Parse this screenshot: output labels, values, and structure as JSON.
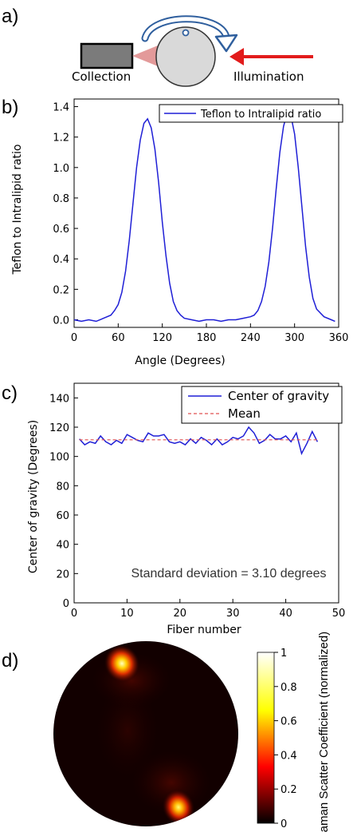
{
  "panel_labels": {
    "a": "a)",
    "b": "b)",
    "c": "c)",
    "d": "d)"
  },
  "diagram": {
    "collection_label": "Collection",
    "illumination_label": "Illumination",
    "arrow_color": "#e21b1b",
    "rotation_arrow_color": "#2f5f9e"
  },
  "chart_data": [
    {
      "type": "line",
      "panel": "b",
      "ylabel": "Teflon to Intralipid ratio",
      "xlabel": "Angle (Degrees)",
      "xlim": [
        0,
        360
      ],
      "ylim": [
        -0.05,
        1.45
      ],
      "xticks": [
        "0",
        "60",
        "120",
        "180",
        "240",
        "300",
        "360"
      ],
      "yticks": [
        "0.0",
        "0.2",
        "0.4",
        "0.6",
        "0.8",
        "1.0",
        "1.2",
        "1.4"
      ],
      "legend": "top-right",
      "series": [
        {
          "name": "Teflon to Intralipid ratio",
          "color": "#1f1fd6",
          "x": [
            0,
            10,
            20,
            30,
            40,
            50,
            55,
            60,
            65,
            70,
            75,
            80,
            85,
            90,
            95,
            100,
            105,
            110,
            115,
            120,
            125,
            130,
            135,
            140,
            145,
            150,
            160,
            170,
            180,
            190,
            200,
            210,
            220,
            230,
            240,
            245,
            250,
            255,
            260,
            265,
            270,
            275,
            280,
            285,
            290,
            295,
            300,
            305,
            310,
            315,
            320,
            325,
            330,
            340,
            350,
            355
          ],
          "y": [
            0.0,
            -0.01,
            0.0,
            -0.01,
            0.01,
            0.03,
            0.06,
            0.1,
            0.18,
            0.32,
            0.52,
            0.76,
            1.0,
            1.18,
            1.29,
            1.32,
            1.26,
            1.12,
            0.9,
            0.64,
            0.42,
            0.24,
            0.12,
            0.06,
            0.03,
            0.01,
            0.0,
            -0.01,
            0.0,
            0.0,
            -0.01,
            0.0,
            0.0,
            0.01,
            0.02,
            0.03,
            0.06,
            0.12,
            0.22,
            0.38,
            0.6,
            0.86,
            1.1,
            1.27,
            1.36,
            1.34,
            1.22,
            1.0,
            0.74,
            0.48,
            0.28,
            0.14,
            0.07,
            0.02,
            0.0,
            -0.01
          ]
        }
      ]
    },
    {
      "type": "line",
      "panel": "c",
      "ylabel": "Center of gravity (Degrees)",
      "xlabel": "Fiber number",
      "xlim": [
        0,
        50
      ],
      "ylim": [
        0,
        150
      ],
      "xticks": [
        "0",
        "10",
        "20",
        "30",
        "40",
        "50"
      ],
      "yticks": [
        "0",
        "20",
        "40",
        "60",
        "80",
        "100",
        "120",
        "140"
      ],
      "legend": "top-right",
      "annotation": "Standard deviation = 3.10 degrees",
      "series": [
        {
          "name": "Center of gravity",
          "color": "#1f1fd6",
          "x": [
            1,
            2,
            3,
            4,
            5,
            6,
            7,
            8,
            9,
            10,
            11,
            12,
            13,
            14,
            15,
            16,
            17,
            18,
            19,
            20,
            21,
            22,
            23,
            24,
            25,
            26,
            27,
            28,
            29,
            30,
            31,
            32,
            33,
            34,
            35,
            36,
            37,
            38,
            39,
            40,
            41,
            42,
            43,
            44,
            45,
            46
          ],
          "y": [
            112,
            108,
            110,
            109,
            114,
            110,
            108,
            111,
            109,
            115,
            113,
            111,
            110,
            116,
            114,
            114,
            115,
            110,
            109,
            110,
            108,
            112,
            109,
            113,
            111,
            108,
            112,
            108,
            110,
            113,
            112,
            114,
            120,
            116,
            109,
            111,
            115,
            112,
            112,
            114,
            110,
            116,
            102,
            109,
            117,
            110
          ]
        },
        {
          "name": "Mean",
          "color": "#e05050",
          "style": "dashed",
          "x": [
            1,
            46
          ],
          "y": [
            111.4,
            111.4
          ]
        }
      ]
    },
    {
      "type": "heatmap",
      "panel": "d",
      "colorbar_label": "Raman Scatter Coefficient (normalized)",
      "colorbar_ticks": [
        "1",
        "0.8",
        "0.6",
        "0.4",
        "0.2",
        "0"
      ],
      "colorbar_range": [
        0,
        1
      ],
      "colormap": "hot",
      "hotspots": [
        {
          "position": "upper-left",
          "value": 1.0
        },
        {
          "position": "lower-center",
          "value": 0.95
        }
      ]
    }
  ]
}
